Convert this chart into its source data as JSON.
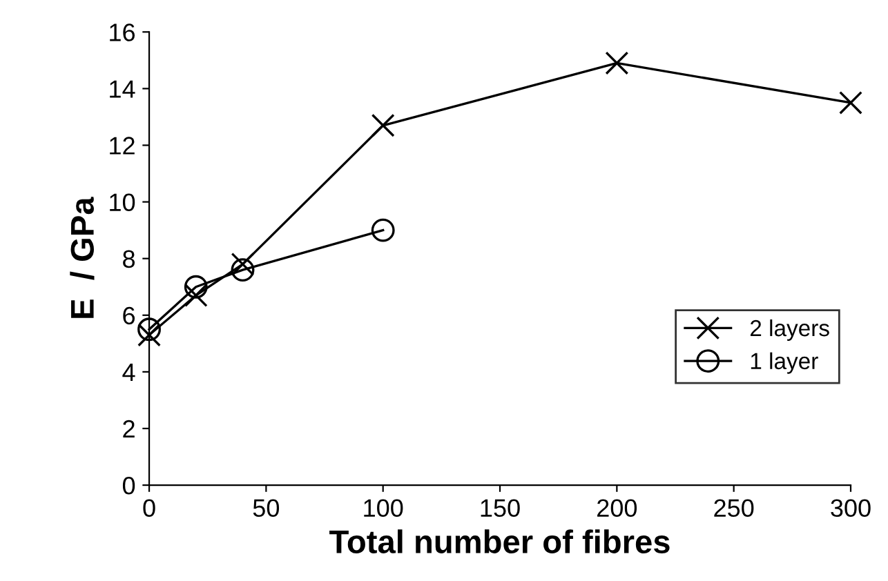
{
  "chart_data": {
    "type": "line",
    "xlabel": "Total number of fibres",
    "ylabel": "E  / GPa",
    "series": [
      {
        "name": "2 layers",
        "color": "#000000",
        "marker": "cross",
        "x": [
          0,
          20,
          40,
          100,
          200,
          300
        ],
        "values": [
          5.3,
          6.7,
          7.8,
          12.7,
          14.9,
          13.5
        ]
      },
      {
        "name": "1 layer",
        "color": "#000000",
        "marker": "circle",
        "x": [
          0,
          20,
          40,
          100
        ],
        "values": [
          5.5,
          7.0,
          7.6,
          9.0
        ]
      }
    ],
    "xlim": [
      0,
      300
    ],
    "xticks": [
      0,
      50,
      100,
      150,
      200,
      250,
      300
    ],
    "ylim": [
      0,
      16
    ],
    "yticks": [
      0,
      2,
      4,
      6,
      8,
      10,
      12,
      14,
      16
    ],
    "grid": false,
    "legend": "bottom right",
    "line_style": "solid"
  }
}
